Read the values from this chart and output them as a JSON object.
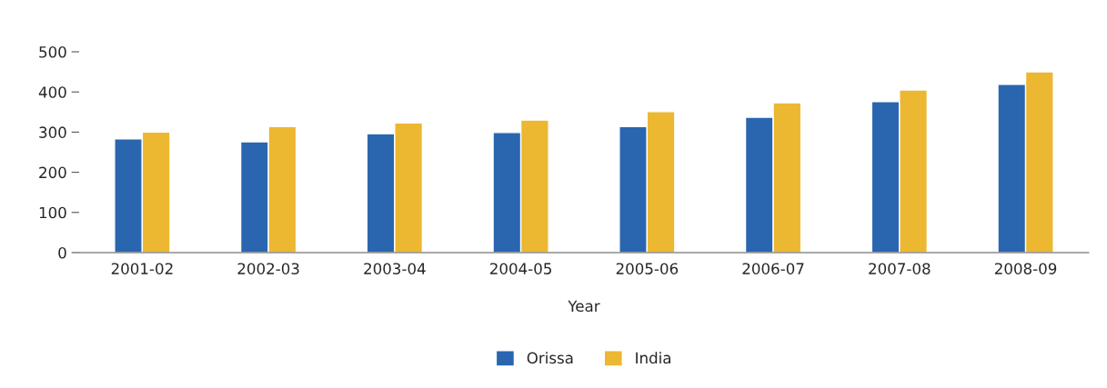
{
  "chart_data": {
    "type": "bar",
    "xlabel": "Year",
    "categories": [
      "2001-02",
      "2002-03",
      "2003-04",
      "2004-05",
      "2005-06",
      "2006-07",
      "2007-08",
      "2008-09"
    ],
    "series": [
      {
        "name": "Orissa",
        "color": "#2a66b0",
        "values": [
          283,
          276,
          296,
          299,
          314,
          337,
          376,
          419
        ]
      },
      {
        "name": "India",
        "color": "#ecb731",
        "values": [
          300,
          314,
          323,
          330,
          351,
          373,
          405,
          450
        ]
      }
    ],
    "ylim": [
      0,
      500
    ],
    "yticks": [
      0,
      100,
      200,
      300,
      400,
      500
    ],
    "grid": false,
    "legend": "bottom"
  }
}
